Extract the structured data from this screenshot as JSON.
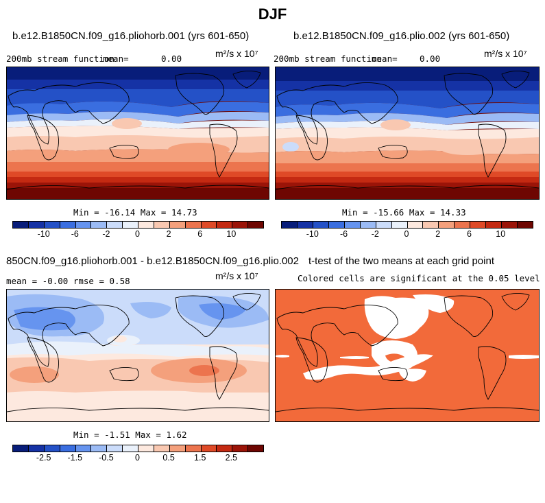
{
  "title": "DJF",
  "panels": {
    "p1": {
      "case": "b.e12.B1850CN.f09_g16.pliohorb.001 (yrs 601-650)",
      "variable": "200mb stream function",
      "mean_label": "mean=",
      "mean_value": "0.00",
      "units": "m²/s x 10⁷",
      "minmax": "Min = -16.14 Max =  14.73"
    },
    "p2": {
      "case": "b.e12.B1850CN.f09_g16.plio.002 (yrs 601-650)",
      "variable": "200mb stream function",
      "mean_label": "mean=",
      "mean_value": "0.00",
      "units": "m²/s x 10⁷",
      "minmax": "Min = -15.66 Max =  14.33"
    },
    "p3": {
      "case": "850CN.f09_g16.pliohorb.001 - b.e12.B1850CN.f09_g16.plio.002",
      "stats": "mean =  -0.00    rmse =    0.58",
      "units": "m²/s x 10⁷",
      "minmax": "Min =  -1.51 Max =   1.62"
    },
    "p4": {
      "title": "t-test of the two means at each grid point",
      "subtitle": "Colored cells are significant at the 0.05 level"
    }
  },
  "colorbar_top": {
    "colors": [
      "#081d7a",
      "#1532a5",
      "#2451c7",
      "#3a6ee0",
      "#6694ef",
      "#9bbbf5",
      "#cbdcfa",
      "#eaf1fb",
      "#fde9df",
      "#f9c8b1",
      "#f4a07c",
      "#ec744e",
      "#df4a27",
      "#c42a12",
      "#9b1408",
      "#6e0602"
    ],
    "labels": [
      "-10",
      "-6",
      "-2",
      "0",
      "2",
      "6",
      "10"
    ]
  },
  "colorbar_bottom": {
    "colors": [
      "#081d7a",
      "#1532a5",
      "#2451c7",
      "#3a6ee0",
      "#6694ef",
      "#9bbbf5",
      "#cbdcfa",
      "#eaf1fb",
      "#fde9df",
      "#f9c8b1",
      "#f4a07c",
      "#ec744e",
      "#df4a27",
      "#c42a12",
      "#9b1408",
      "#6e0602"
    ],
    "labels": [
      "-2.5",
      "-1.5",
      "-0.5",
      "0",
      "0.5",
      "1.5",
      "2.5"
    ]
  },
  "colors": {
    "significant": "#f26a3a",
    "not_significant": "#ffffff"
  }
}
